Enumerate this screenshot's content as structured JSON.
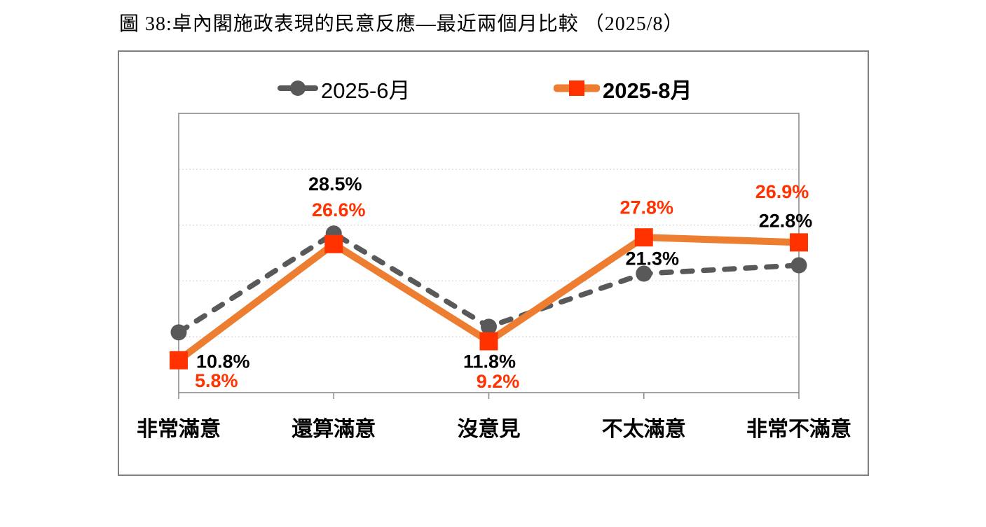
{
  "title": "圖 38:卓內閣施政表現的民意反應—最近兩個月比較 （2025/8）",
  "legend": {
    "items": [
      {
        "label": "2025-6月"
      },
      {
        "label": "2025-8月"
      }
    ]
  },
  "chart_data": {
    "type": "line",
    "title": "圖 38:卓內閣施政表現的民意反應—最近兩個月比較 （2025/8）",
    "categories": [
      "非常滿意",
      "還算滿意",
      "沒意見",
      "不太滿意",
      "非常不滿意"
    ],
    "series": [
      {
        "name": "2025-6月",
        "values": [
          10.8,
          28.5,
          11.8,
          21.3,
          22.8
        ],
        "labels": [
          "10.8%",
          "28.5%",
          "11.8%",
          "21.3%",
          "22.8%"
        ],
        "line_color": "#595959",
        "marker": "circle",
        "marker_color": "#595959",
        "label_color": "#000000",
        "dashed": true
      },
      {
        "name": "2025-8月",
        "values": [
          5.8,
          26.6,
          9.2,
          27.8,
          26.9
        ],
        "labels": [
          "5.8%",
          "26.6%",
          "9.2%",
          "27.8%",
          "26.9%"
        ],
        "line_color": "#ED7D31",
        "marker": "square",
        "marker_color": "#FF3200",
        "label_color": "#FF3200",
        "dashed": false
      }
    ],
    "ylim": [
      0,
      50
    ],
    "grid_interval": 10,
    "grid": true,
    "legend_position": "top",
    "xlabel": "",
    "ylabel": ""
  },
  "colors": {
    "gridline": "#D9D9D9",
    "plot_border": "#8C8C8C",
    "frame_border": "#808080",
    "tick": "#8C8C8C",
    "june_gray": "#595959",
    "aug_orange": "#ED7D31",
    "aug_red": "#FF3200",
    "label_black": "#000000",
    "background": "#FFFFFF"
  }
}
